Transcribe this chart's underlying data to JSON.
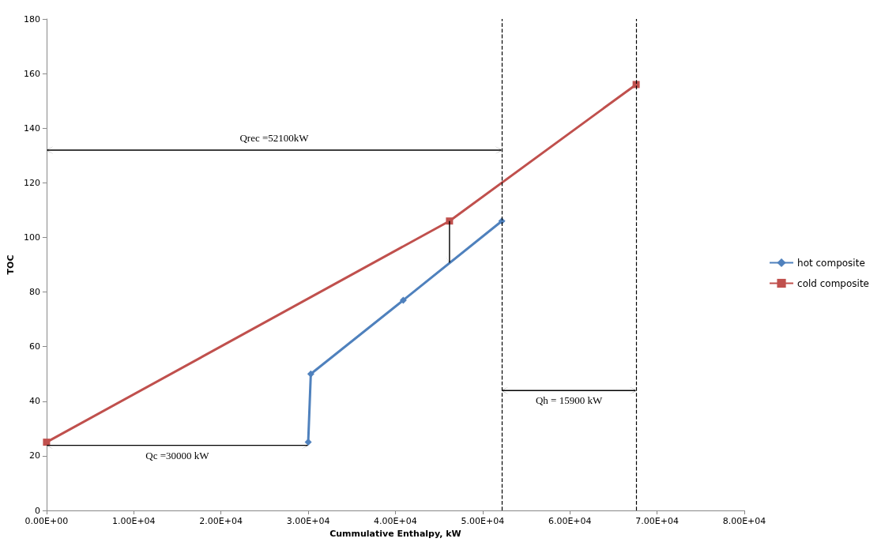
{
  "chart_data": {
    "type": "line",
    "xlabel": "Cummulative Enthalpy, kW",
    "ylabel": "TOC",
    "xlim": [
      0,
      80000
    ],
    "xticks": [
      {
        "value": 0,
        "label": "0.00E+00"
      },
      {
        "value": 10000,
        "label": "1.00E+04"
      },
      {
        "value": 20000,
        "label": "2.00E+04"
      },
      {
        "value": 30000,
        "label": "3.00E+04"
      },
      {
        "value": 40000,
        "label": "4.00E+04"
      },
      {
        "value": 50000,
        "label": "5.00E+04"
      },
      {
        "value": 60000,
        "label": "6.00E+04"
      },
      {
        "value": 70000,
        "label": "7.00E+04"
      },
      {
        "value": 80000,
        "label": "8.00E+04"
      }
    ],
    "ylim": [
      0,
      180
    ],
    "yticks": [
      0,
      20,
      40,
      60,
      80,
      100,
      120,
      140,
      160,
      180
    ],
    "grid": false,
    "legend": "right",
    "series": [
      {
        "name": "hot composite",
        "color": "#4f81bd",
        "marker": "diamond",
        "x": [
          30000,
          30300,
          40900,
          52200
        ],
        "values": [
          25,
          50,
          77,
          106
        ]
      },
      {
        "name": "cold composite",
        "color": "#c0504d",
        "marker": "square",
        "x": [
          0,
          46200,
          67600
        ],
        "values": [
          25,
          106,
          156
        ]
      }
    ],
    "ref_lines": [
      {
        "axis": "x",
        "value": 52200,
        "color": "#000000",
        "line_style": "dashed"
      },
      {
        "axis": "x",
        "value": 67600,
        "color": "#000000",
        "line_style": "dashed"
      }
    ],
    "annotations": [
      "Qrec =52100kW",
      "Qc =30000 kW",
      "Qh = 15900 kW"
    ]
  }
}
